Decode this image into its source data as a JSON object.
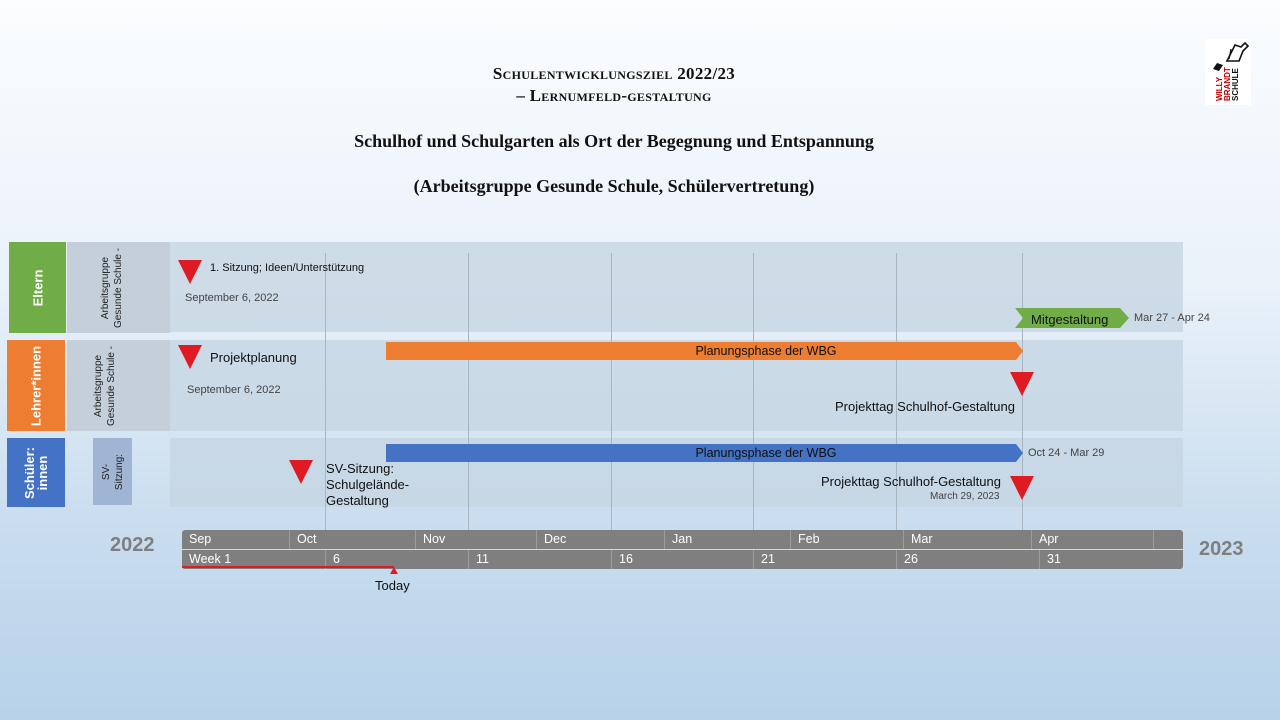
{
  "titles": {
    "line1": "Schulentwicklungsziel 2022/23",
    "line2": "– Lernumfeld-gestaltung",
    "line3": "Schulhof und Schulgarten als Ort der Begegnung und Entspannung",
    "line4": "(Arbeitsgruppe Gesunde Schule, Schülervertretung)"
  },
  "logo": {
    "text": "WILLY BRANDT SCHULE",
    "icon": "pen-hand-icon"
  },
  "rows": [
    {
      "label": "Eltern",
      "color": "#70ad47",
      "sub": [
        "Arbeitsgruppe",
        "Gesunde Schule -"
      ]
    },
    {
      "label": "Lehrer*innen",
      "color": "#ed7d31",
      "sub": [
        "Arbeitsgruppe",
        "Gesunde Schule -"
      ]
    },
    {
      "label": "Schüler: innen",
      "label_lines": [
        "Schüler:",
        "innen"
      ],
      "color": "#4472c4",
      "sub": [
        "SV-",
        "Sitzung:"
      ]
    }
  ],
  "milestones": {
    "eltern_sitzung": {
      "label": "1. Sitzung; Ideen/Unterstützung",
      "date": "September 6, 2022"
    },
    "lehrer_projektplanung": {
      "label": "Projektplanung",
      "date": "September 6, 2022"
    },
    "lehrer_projekttag": {
      "label": "Projekttag Schulhof-Gestaltung"
    },
    "schueler_sv": {
      "label_lines": [
        "SV-Sitzung:",
        "Schulgelände-",
        "Gestaltung"
      ]
    },
    "schueler_projekttag": {
      "label": "Projekttag Schulhof-Gestaltung",
      "date": "March 29, 2023"
    }
  },
  "tasks": {
    "mitgestaltung": {
      "label": "Mitgestaltung",
      "dates": "Mar 27 - Apr 24",
      "color": "#70ad47"
    },
    "lehrer_planung": {
      "label": "Planungsphase der WBG",
      "color": "#ed7d31"
    },
    "schueler_planung": {
      "label": "Planungsphase der WBG",
      "dates": "Oct 24 - Mar 29",
      "color": "#4472c4"
    }
  },
  "timescale": {
    "start_year": "2022",
    "end_year": "2023",
    "months": [
      "Sep",
      "Oct",
      "Nov",
      "Dec",
      "Jan",
      "Feb",
      "Mar",
      "Apr"
    ],
    "weeks": [
      "Week 1",
      "6",
      "11",
      "16",
      "21",
      "26",
      "31"
    ],
    "today_label": "Today"
  },
  "colors": {
    "milestone": "#e01a22",
    "today_line": "#e01a22",
    "scale_bg": "#7f7f7f"
  }
}
